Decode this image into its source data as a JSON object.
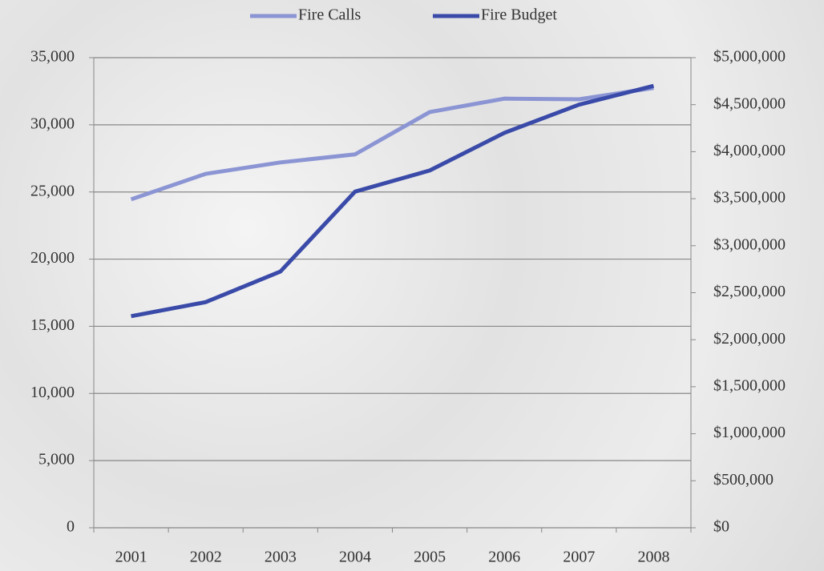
{
  "chart_data": {
    "type": "line",
    "categories": [
      "2001",
      "2002",
      "2003",
      "2004",
      "2005",
      "2006",
      "2007",
      "2008"
    ],
    "series": [
      {
        "name": "Fire Calls",
        "color": "#8b95d4",
        "values": [
          24450,
          26350,
          27200,
          27800,
          30950,
          31950,
          31900,
          32750
        ]
      },
      {
        "name": "Fire Budget",
        "color": "#3a4aa8",
        "axis": "y2",
        "values": [
          2250000,
          2400000,
          2725000,
          3575000,
          3800000,
          4200000,
          4500000,
          4700000
        ]
      }
    ],
    "ylim": [
      0,
      35000
    ],
    "yticks": [
      0,
      {
        "value": 5000,
        "label": "5,000"
      },
      {
        "value": 10000,
        "label": "10,000"
      },
      {
        "value": 15000,
        "label": "15,000"
      },
      {
        "value": 20000,
        "label": "20,000"
      },
      {
        "value": 25000,
        "label": "25,000"
      },
      {
        "value": 30000,
        "label": "30,000"
      },
      {
        "value": 35000,
        "label": "35,000"
      }
    ],
    "y2lim": [
      0,
      5000000
    ],
    "y2ticks": [
      {
        "value": 0,
        "label": "$0"
      },
      {
        "value": 500000,
        "label": "$500,000"
      },
      {
        "value": 1000000,
        "label": "$1,000,000"
      },
      {
        "value": 1500000,
        "label": "$1,500,000"
      },
      {
        "value": 2000000,
        "label": "$2,000,000"
      },
      {
        "value": 2500000,
        "label": "$2,500,000"
      },
      {
        "value": 3000000,
        "label": "$3,000,000"
      },
      {
        "value": 3500000,
        "label": "$3,500,000"
      },
      {
        "value": 4000000,
        "label": "$4,000,000"
      },
      {
        "value": 4500000,
        "label": "$4,500,000"
      },
      {
        "value": 5000000,
        "label": "$5,000,000"
      }
    ],
    "grid": true,
    "legend": "top"
  }
}
